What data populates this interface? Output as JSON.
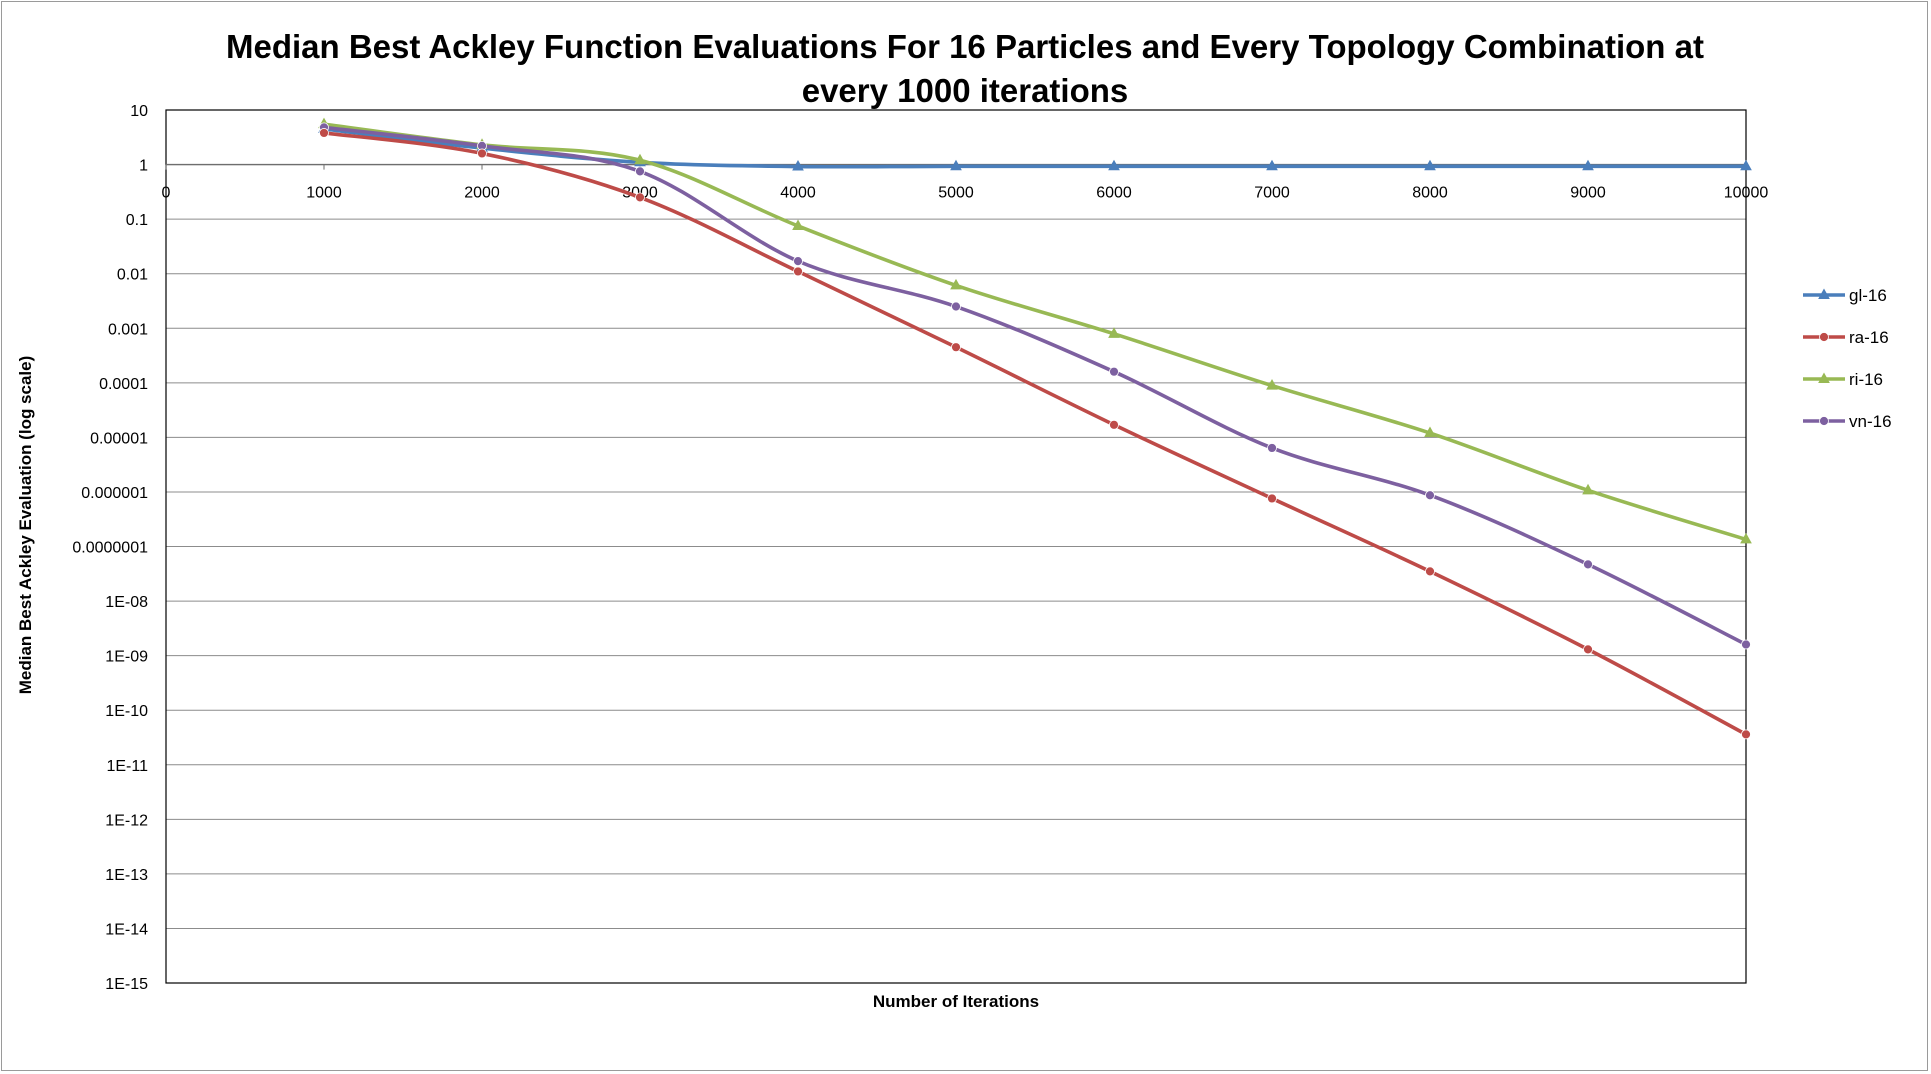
{
  "chart_data": {
    "type": "line",
    "title_line1": "Median Best Ackley Function Evaluations For 16 Particles and Every Topology Combination at",
    "title_line2": "every 1000 iterations",
    "xlabel": "Number of Iterations",
    "ylabel": "Median Best Ackley Evaluation (log scale)",
    "y_scale": "log",
    "ylim": [
      1e-15,
      10
    ],
    "xlim": [
      0,
      10000
    ],
    "grid": "horizontal",
    "legend_position": "right",
    "x_tick_labels": [
      "0",
      "1000",
      "2000",
      "3000",
      "4000",
      "5000",
      "6000",
      "7000",
      "8000",
      "9000",
      "10000"
    ],
    "y_tick_labels": [
      "10",
      "1",
      "0.1",
      "0.01",
      "0.001",
      "0.0001",
      "0.00001",
      "0.000001",
      "0.0000001",
      "1E-08",
      "1E-09",
      "1E-10",
      "1E-11",
      "1E-12",
      "1E-13",
      "1E-14",
      "1E-15"
    ],
    "x": [
      1000,
      2000,
      3000,
      4000,
      5000,
      6000,
      7000,
      8000,
      9000,
      10000
    ],
    "series": [
      {
        "name": "gl-16",
        "color": "#4a7ebb",
        "marker": "triangle",
        "values": [
          4.5,
          2.0,
          1.1,
          0.92,
          0.93,
          0.93,
          0.93,
          0.93,
          0.93,
          0.93
        ]
      },
      {
        "name": "ra-16",
        "color": "#be4b48",
        "marker": "circle",
        "values": [
          3.8,
          1.6,
          0.25,
          0.011,
          0.00045,
          1.7e-05,
          7.6e-07,
          3.5e-08,
          1.3e-09,
          3.6e-11
        ]
      },
      {
        "name": "ri-16",
        "color": "#98b954",
        "marker": "triangle",
        "values": [
          5.5,
          2.3,
          1.2,
          0.075,
          0.0061,
          0.00079,
          8.9e-05,
          1.2e-05,
          1.07e-06,
          1.35e-07
        ]
      },
      {
        "name": "vn-16",
        "color": "#7d60a0",
        "marker": "circle",
        "values": [
          4.8,
          2.2,
          0.75,
          0.017,
          0.0025,
          0.00016,
          6.4e-06,
          8.7e-07,
          4.7e-08,
          1.6e-09
        ]
      }
    ]
  }
}
